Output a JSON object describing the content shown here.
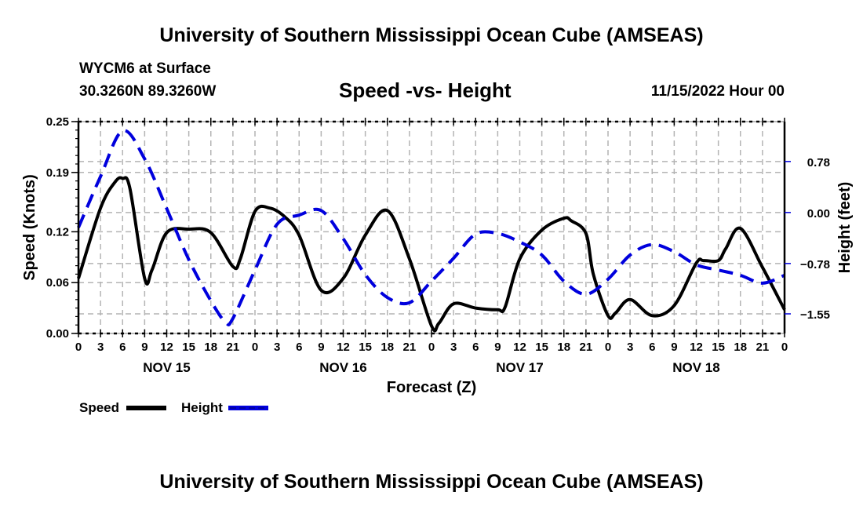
{
  "header": {
    "title_top": "University of Southern Mississippi Ocean Cube (AMSEAS)",
    "station": "WYCM6 at Surface",
    "coords": "30.3260N  89.3260W",
    "datetime": "11/15/2022 Hour 00"
  },
  "footer": {
    "title_bottom": "University of Southern Mississippi Ocean Cube (AMSEAS)"
  },
  "chart_data": {
    "type": "line",
    "title": "Speed -vs- Height",
    "xlabel": "Forecast (Z)",
    "ylabel": "Speed (Knots)",
    "y2label": "Height (feet)",
    "xlim": [
      0,
      96
    ],
    "ylim": [
      0,
      0.25
    ],
    "y2lim": [
      -1.85,
      1.39
    ],
    "grid": true,
    "yticks": [
      0.0,
      0.06,
      0.12,
      0.19,
      0.25
    ],
    "ytick_labels": [
      "0.00",
      "0.06",
      "0.12",
      "0.19",
      "0.25"
    ],
    "y2ticks": [
      -1.55,
      -0.78,
      0.0,
      0.78
    ],
    "y2tick_labels": [
      "−1.55",
      "−0.78",
      "0.00",
      "0.78"
    ],
    "xticks_hours": [
      0,
      3,
      6,
      9,
      12,
      15,
      18,
      21,
      24,
      27,
      30,
      33,
      36,
      39,
      42,
      45,
      48,
      51,
      54,
      57,
      60,
      63,
      66,
      69,
      72,
      75,
      78,
      81,
      84,
      87,
      90,
      93,
      96
    ],
    "xtick_labels": [
      "0",
      "3",
      "6",
      "9",
      "12",
      "15",
      "18",
      "21",
      "0",
      "3",
      "6",
      "9",
      "12",
      "15",
      "18",
      "21",
      "0",
      "3",
      "6",
      "9",
      "12",
      "15",
      "18",
      "21",
      "0",
      "3",
      "6",
      "9",
      "12",
      "15",
      "18",
      "21",
      "0"
    ],
    "day_labels": [
      {
        "label": "NOV 15",
        "hour": 12
      },
      {
        "label": "NOV 16",
        "hour": 36
      },
      {
        "label": "NOV 17",
        "hour": 60
      },
      {
        "label": "NOV 18",
        "hour": 84
      }
    ],
    "legend": {
      "placement": "bottom-left",
      "entries": [
        {
          "name": "Speed",
          "color": "#000000",
          "style": "solid"
        },
        {
          "name": "Height",
          "color": "#0000dd",
          "style": "dashed"
        }
      ]
    },
    "series": [
      {
        "name": "Speed",
        "axis": "left",
        "color": "#000000",
        "style": "solid",
        "x": [
          0,
          3,
          5,
          6,
          7,
          9,
          10,
          12,
          15,
          18,
          21,
          22,
          24,
          26,
          28,
          30,
          33,
          36,
          39,
          42,
          45,
          48,
          49,
          51,
          54,
          57,
          58,
          60,
          63,
          66,
          67,
          69,
          70,
          72,
          73,
          75,
          78,
          81,
          84,
          85,
          87,
          88,
          90,
          93,
          96
        ],
        "values": [
          0.065,
          0.148,
          0.179,
          0.183,
          0.171,
          0.065,
          0.075,
          0.119,
          0.123,
          0.119,
          0.079,
          0.088,
          0.144,
          0.148,
          0.138,
          0.116,
          0.051,
          0.065,
          0.116,
          0.145,
          0.088,
          0.009,
          0.012,
          0.035,
          0.03,
          0.028,
          0.031,
          0.088,
          0.122,
          0.136,
          0.133,
          0.118,
          0.07,
          0.021,
          0.024,
          0.04,
          0.021,
          0.033,
          0.083,
          0.086,
          0.086,
          0.1,
          0.124,
          0.078,
          0.028
        ]
      },
      {
        "name": "Height",
        "axis": "right",
        "color": "#0000dd",
        "style": "dashed",
        "x": [
          0,
          3,
          6,
          9,
          12,
          15,
          18,
          20,
          21,
          24,
          27,
          30,
          33,
          36,
          39,
          42,
          45,
          48,
          51,
          54,
          57,
          60,
          63,
          66,
          69,
          72,
          75,
          78,
          81,
          84,
          87,
          90,
          93,
          96
        ],
        "values": [
          -0.23,
          0.55,
          1.25,
          0.82,
          0.06,
          -0.72,
          -1.35,
          -1.68,
          -1.62,
          -0.88,
          -0.18,
          -0.04,
          0.03,
          -0.4,
          -0.95,
          -1.3,
          -1.38,
          -1.05,
          -0.7,
          -0.33,
          -0.32,
          -0.45,
          -0.65,
          -1.05,
          -1.25,
          -1.02,
          -0.65,
          -0.49,
          -0.6,
          -0.8,
          -0.88,
          -0.96,
          -1.08,
          -0.96
        ]
      }
    ]
  }
}
